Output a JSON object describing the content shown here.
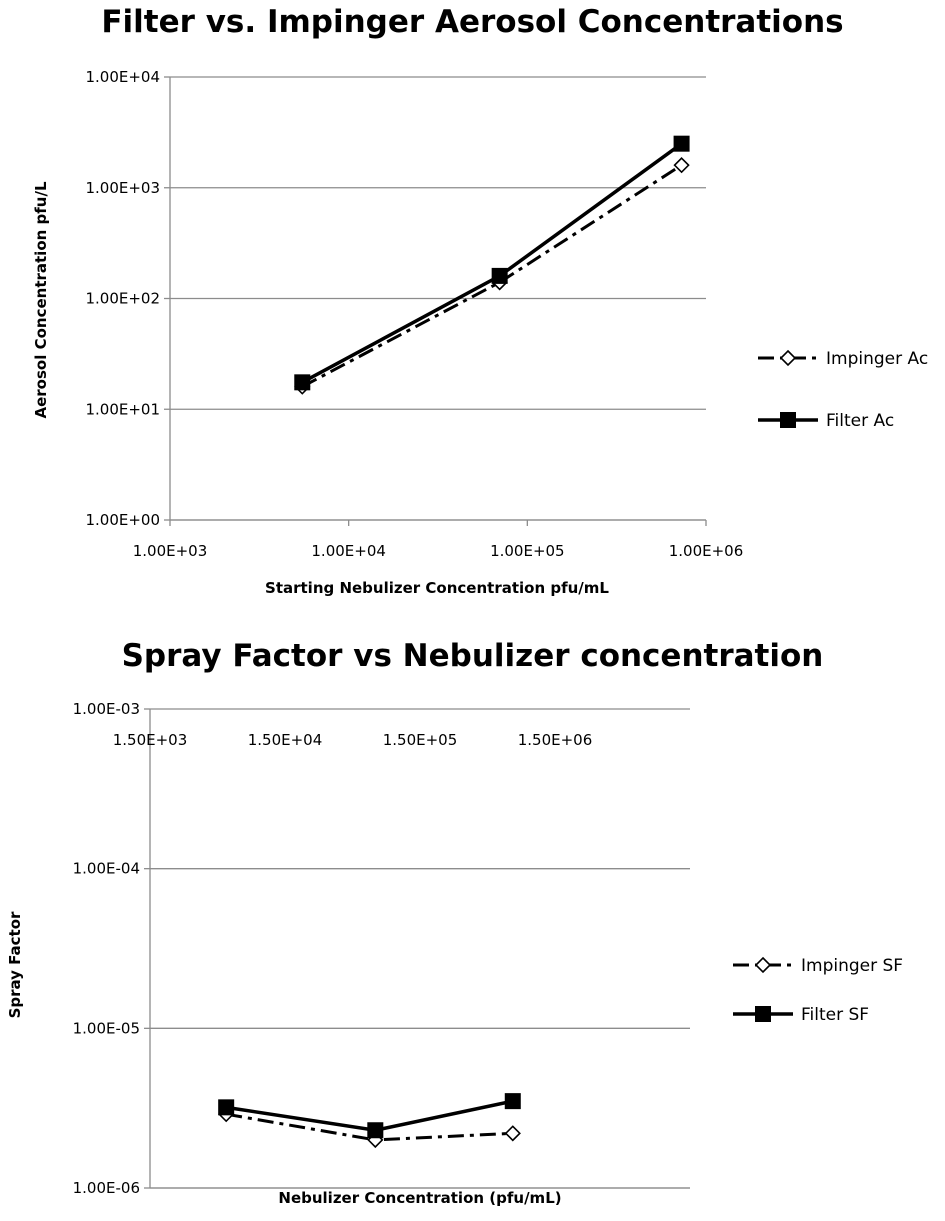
{
  "chart_data": [
    {
      "type": "line",
      "title": "Filter vs. Impinger Aerosol Concentrations",
      "xlabel": "Starting Nebulizer Concentration pfu/mL",
      "ylabel": "Aerosol Concentration pfu/L",
      "xscale": "log",
      "yscale": "log",
      "xlim": [
        1000,
        1000000
      ],
      "ylim": [
        1,
        10000
      ],
      "xticks": [
        1000,
        10000,
        100000,
        1000000
      ],
      "xtick_labels": [
        "1.00E+03",
        "1.00E+04",
        "1.00E+05",
        "1.00E+06"
      ],
      "yticks": [
        1,
        10,
        100,
        1000,
        10000
      ],
      "ytick_labels": [
        "1.00E+00",
        "1.00E+01",
        "1.00E+02",
        "1.00E+03",
        "1.00E+04"
      ],
      "grid": "horizontal",
      "legend_position": "right",
      "series": [
        {
          "name": "Impinger Ac",
          "style": "dash-dot",
          "marker": "open-diamond",
          "x": [
            5500,
            70000,
            730000
          ],
          "y": [
            16,
            140,
            1600
          ]
        },
        {
          "name": "Filter Ac",
          "style": "solid",
          "marker": "filled-square",
          "x": [
            5500,
            70000,
            730000
          ],
          "y": [
            17.5,
            160,
            2500
          ]
        }
      ]
    },
    {
      "type": "line",
      "title": "Spray Factor vs Nebulizer concentration",
      "xlabel": "Nebulizer Concentration (pfu/mL)",
      "ylabel": "Spray Factor",
      "xscale": "log",
      "yscale": "log",
      "xlim": [
        1500,
        15000000
      ],
      "ylim": [
        1e-06,
        0.001
      ],
      "xticks": [
        1500,
        15000,
        150000,
        1500000
      ],
      "xtick_labels": [
        "1.50E+03",
        "1.50E+04",
        "1.50E+05",
        "1.50E+06"
      ],
      "yticks": [
        1e-06,
        1e-05,
        0.0001,
        0.001
      ],
      "ytick_labels": [
        "1.00E-06",
        "1.00E-05",
        "1.00E-04",
        "1.00E-03"
      ],
      "grid": "horizontal",
      "legend_position": "right",
      "series": [
        {
          "name": "Impinger SF",
          "style": "dash-dot",
          "marker": "open-diamond",
          "x": [
            5500,
            70000,
            730000
          ],
          "y": [
            2.9e-06,
            2e-06,
            2.2e-06
          ]
        },
        {
          "name": "Filter SF",
          "style": "solid",
          "marker": "filled-square",
          "x": [
            5500,
            70000,
            730000
          ],
          "y": [
            3.2e-06,
            2.3e-06,
            3.5e-06
          ]
        }
      ]
    }
  ]
}
